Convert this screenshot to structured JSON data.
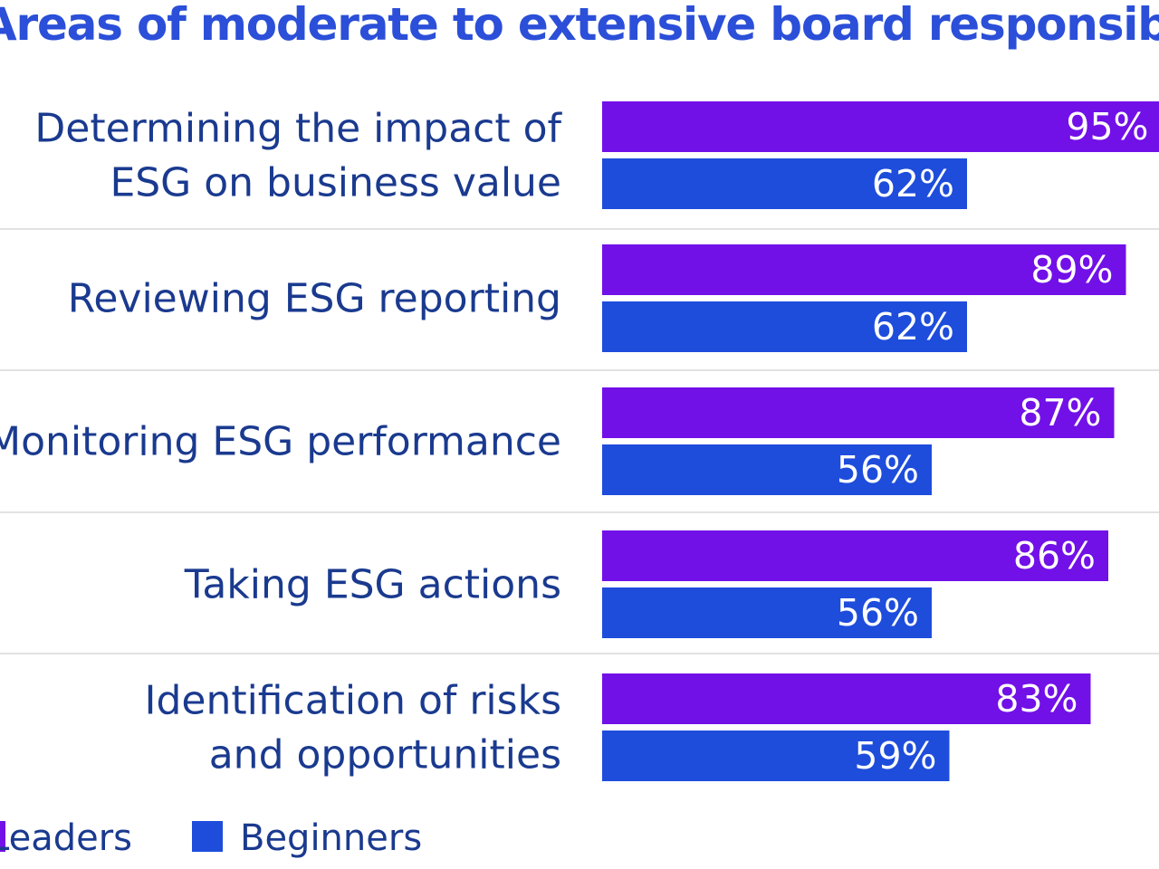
{
  "chart_data": {
    "type": "bar",
    "orientation": "horizontal",
    "title": "Areas of moderate to extensive board responsibility",
    "categories": [
      [
        "Determining the impact of",
        "ESG on business value"
      ],
      [
        "Reviewing ESG reporting"
      ],
      [
        "Monitoring ESG performance"
      ],
      [
        "Taking ESG actions"
      ],
      [
        "Identification of risks",
        "and opportunities"
      ]
    ],
    "series": [
      {
        "name": "Leaders",
        "color": "#7210e8",
        "values": [
          95,
          89,
          87,
          86,
          83
        ]
      },
      {
        "name": "Beginners",
        "color": "#1e4ddc",
        "values": [
          62,
          62,
          56,
          56,
          59
        ]
      }
    ],
    "value_suffix": "%",
    "xlim": [
      0,
      100
    ],
    "grid": false,
    "legend_position": "bottom-left",
    "separator_color": "#e2e2e2"
  }
}
